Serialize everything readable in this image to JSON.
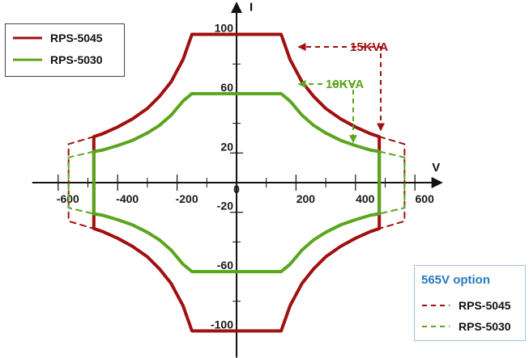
{
  "chart_data": {
    "type": "line",
    "xlabel": "V",
    "ylabel": "I",
    "xlim": [
      -660,
      690
    ],
    "ylim": [
      -118,
      118
    ],
    "x_ticks": [
      -600,
      -400,
      -200,
      0,
      200,
      400,
      600
    ],
    "x_tick_labels": [
      "-600",
      "-400",
      "-200",
      "0",
      "200",
      "400",
      "600"
    ],
    "y_ticks": [
      100,
      60,
      20,
      -20,
      -60,
      -100
    ],
    "y_tick_labels": [
      "100",
      "60",
      "20",
      "-20",
      "-60",
      "-100"
    ],
    "grid": false,
    "series": [
      {
        "name": "RPS-5045",
        "color": "#a01010",
        "style": "solid",
        "x": [
          -150,
          150,
          180,
          220,
          260,
          300,
          350,
          400,
          450,
          480,
          480,
          450,
          400,
          350,
          300,
          260,
          220,
          180,
          150,
          -150,
          -180,
          -220,
          -260,
          -300,
          -350,
          -400,
          -450,
          -480,
          -480,
          -450,
          -400,
          -350,
          -300,
          -260,
          -220,
          -180,
          -150
        ],
        "y": [
          100,
          100,
          83,
          68,
          58,
          50,
          43,
          37.5,
          33,
          31,
          -31,
          -33,
          -37.5,
          -43,
          -50,
          -58,
          -68,
          -83,
          -100,
          -100,
          -83,
          -68,
          -58,
          -50,
          -43,
          -37.5,
          -33,
          -31,
          31,
          33,
          37.5,
          43,
          50,
          58,
          68,
          83,
          100
        ]
      },
      {
        "name": "RPS-5030",
        "color": "#5aa51e",
        "style": "solid",
        "x": [
          -150,
          150,
          180,
          220,
          260,
          300,
          350,
          400,
          450,
          480,
          480,
          450,
          400,
          350,
          300,
          260,
          220,
          180,
          150,
          -150,
          -180,
          -220,
          -260,
          -300,
          -350,
          -400,
          -450,
          -480,
          -480,
          -450,
          -400,
          -350,
          -300,
          -260,
          -220,
          -180,
          -150
        ],
        "y": [
          60,
          60,
          55,
          45.5,
          38.5,
          33.5,
          28.5,
          25,
          22,
          21,
          -21,
          -22,
          -25,
          -28.5,
          -33.5,
          -38.5,
          -45.5,
          -55,
          -60,
          -60,
          -55,
          -45.5,
          -38.5,
          -33.5,
          -28.5,
          -25,
          -22,
          -21,
          21,
          22,
          25,
          28.5,
          33.5,
          38.5,
          45.5,
          55,
          60
        ]
      },
      {
        "name": "RPS-5045",
        "legend_group": "565V option",
        "color": "#a01010",
        "style": "dashed",
        "x": [
          480,
          565,
          565,
          480
        ],
        "y": [
          31,
          26,
          -26,
          -31
        ],
        "x2": [
          -480,
          -565,
          -565,
          -480
        ],
        "y2": [
          31,
          26,
          -26,
          -31
        ]
      },
      {
        "name": "RPS-5030",
        "legend_group": "565V option",
        "color": "#5aa51e",
        "style": "dashed",
        "x": [
          480,
          565,
          565,
          480
        ],
        "y": [
          21,
          17,
          -17,
          -21
        ],
        "x2": [
          -480,
          -565,
          -565,
          -480
        ],
        "y2": [
          21,
          17,
          -17,
          -21
        ]
      }
    ],
    "annotations": [
      {
        "text": "15KVA",
        "color": "#a01010",
        "target_series": "RPS-5045",
        "target_x": [
          165,
          480
        ],
        "target_y": [
          85,
          33
        ]
      },
      {
        "text": "10KVA",
        "color": "#5aa51e",
        "target_series": "RPS-5030",
        "target_x": [
          165,
          450
        ],
        "target_y": [
          57,
          25
        ]
      }
    ],
    "legend_main": {
      "position": "top-left",
      "entries": [
        {
          "label": "RPS-5045",
          "color": "#a01010",
          "style": "solid"
        },
        {
          "label": "RPS-5030",
          "color": "#5aa51e",
          "style": "solid"
        }
      ]
    },
    "legend_option": {
      "position": "bottom-right",
      "title": "565V option",
      "title_color": "#2a7ab8",
      "border_color": "#9ec5e8",
      "entries": [
        {
          "label": "RPS-5045",
          "color": "#a01010",
          "style": "dashed"
        },
        {
          "label": "RPS-5030",
          "color": "#5aa51e",
          "style": "dashed"
        }
      ]
    }
  }
}
